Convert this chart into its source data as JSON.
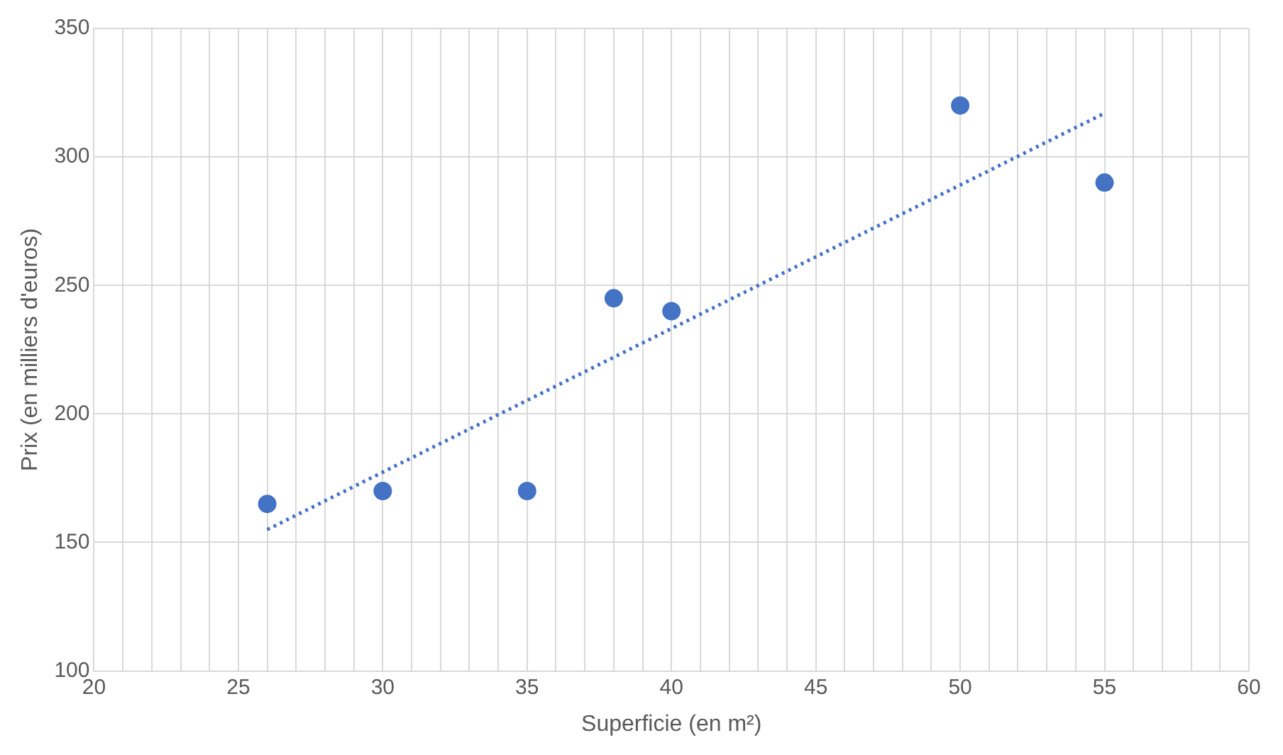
{
  "chart_data": {
    "type": "scatter",
    "xlabel": "Superficie (en m²)",
    "ylabel": "Prix (en milliers d'euros)",
    "xlim": [
      20,
      60
    ],
    "ylim": [
      100,
      350
    ],
    "xticks": [
      20,
      {
        "value": 21,
        "label": null
      },
      {
        "value": 22,
        "label": null
      },
      {
        "value": 23,
        "label": null
      },
      {
        "value": 24,
        "label": null
      },
      25,
      {
        "value": 26,
        "label": null
      },
      {
        "value": 27,
        "label": null
      },
      {
        "value": 28,
        "label": null
      },
      {
        "value": 29,
        "label": null
      },
      30,
      {
        "value": 31,
        "label": null
      },
      {
        "value": 32,
        "label": null
      },
      {
        "value": 33,
        "label": null
      },
      {
        "value": 34,
        "label": null
      },
      35,
      {
        "value": 36,
        "label": null
      },
      {
        "value": 37,
        "label": null
      },
      {
        "value": 38,
        "label": null
      },
      {
        "value": 39,
        "label": null
      },
      40,
      {
        "value": 41,
        "label": null
      },
      {
        "value": 42,
        "label": null
      },
      {
        "value": 43,
        "label": null
      },
      {
        "value": 44,
        "label": null
      },
      45,
      {
        "value": 46,
        "label": null
      },
      {
        "value": 47,
        "label": null
      },
      {
        "value": 48,
        "label": null
      },
      {
        "value": 49,
        "label": null
      },
      50,
      {
        "value": 51,
        "label": null
      },
      {
        "value": 52,
        "label": null
      },
      {
        "value": 53,
        "label": null
      },
      {
        "value": 54,
        "label": null
      },
      55,
      {
        "value": 56,
        "label": null
      },
      {
        "value": 57,
        "label": null
      },
      {
        "value": 58,
        "label": null
      },
      {
        "value": 59,
        "label": null
      },
      60
    ],
    "yticks": [
      100,
      150,
      200,
      250,
      300,
      350
    ],
    "grid": true,
    "legend": false,
    "series": [
      {
        "marker": "circle",
        "color": "#4472c4",
        "x": [
          26,
          30,
          35,
          38,
          40,
          50,
          55
        ],
        "values": [
          165,
          170,
          170,
          245,
          240,
          320,
          290
        ]
      },
      {
        "type": "line",
        "marker": "none",
        "color": "#4472c4",
        "line_style": "dotted",
        "x": [
          26,
          55
        ],
        "values": [
          155,
          317
        ]
      }
    ]
  }
}
